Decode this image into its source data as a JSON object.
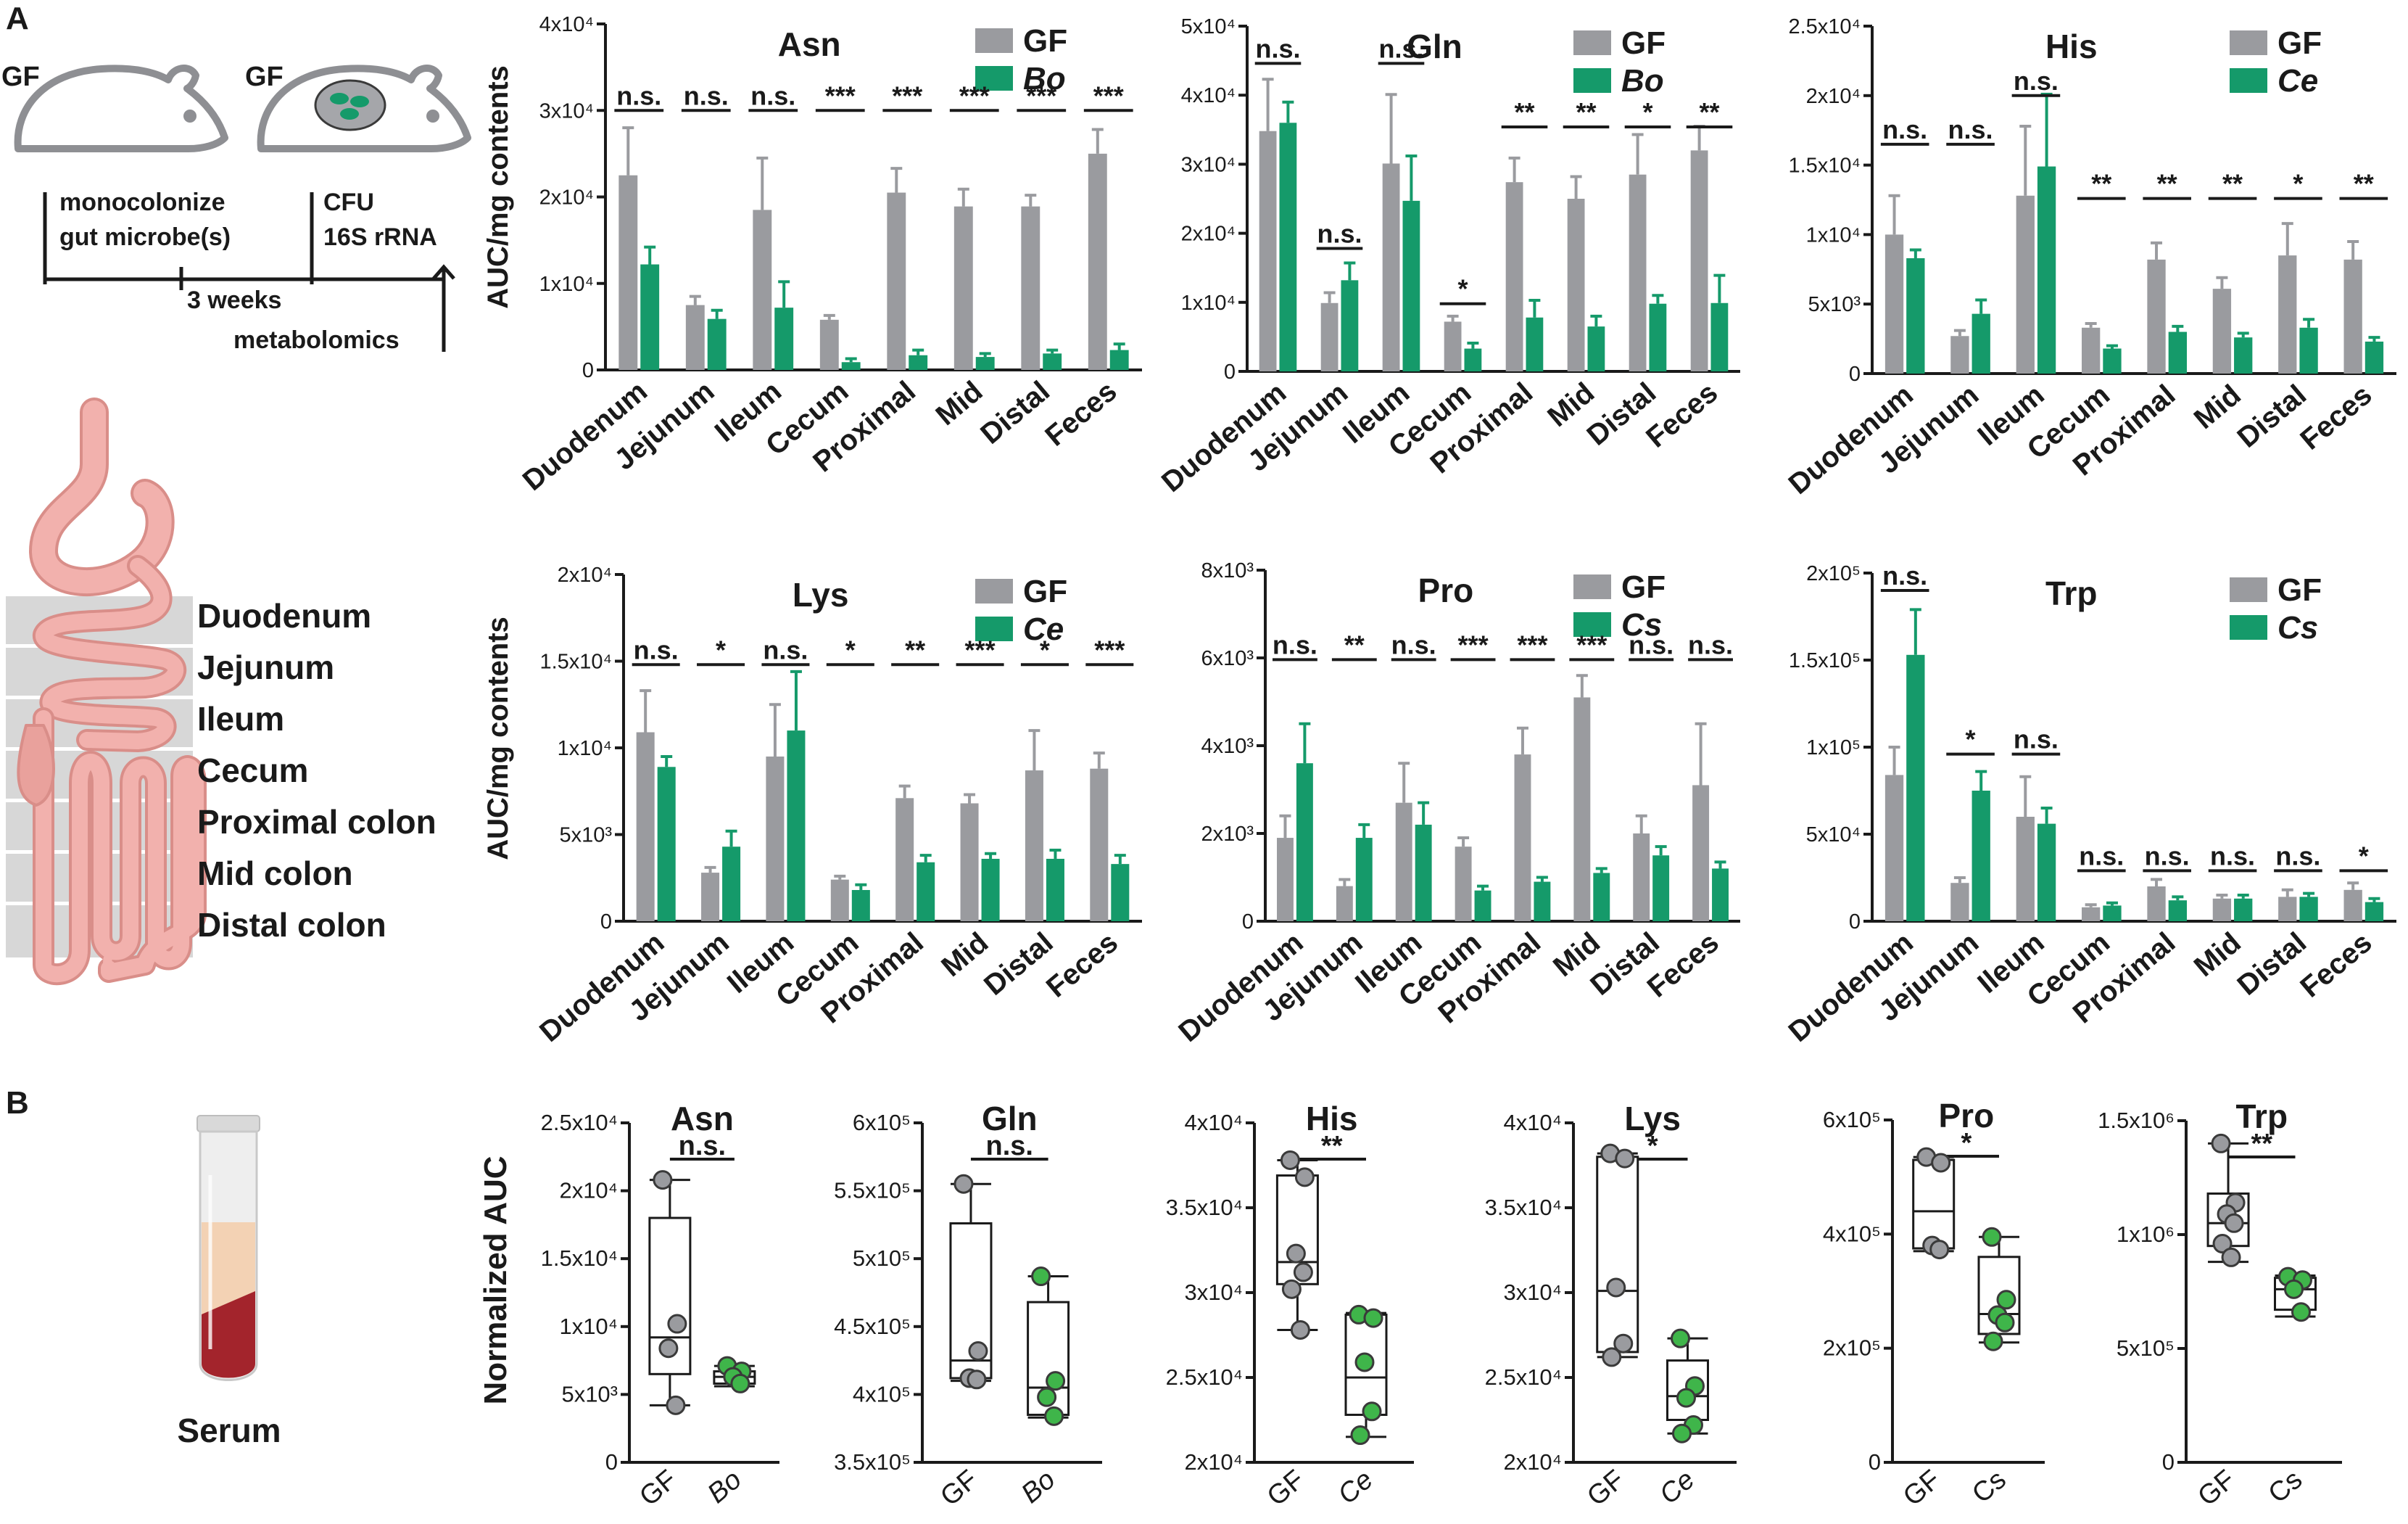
{
  "colors": {
    "gf": "#9a9b9f",
    "treated": "#159a6a",
    "axis": "#1a1a1a",
    "gut_fill": "#f2b1ad",
    "gut_stroke": "#d98e89",
    "band": "#d7d7d7",
    "serum_top": "#f3d2b4",
    "serum_bottom": "#a3242c",
    "dot_gf": "#9a9b9f",
    "dot_treated": "#3fb54a"
  },
  "panel_a": {
    "label": "A",
    "schematic": {
      "gf_left": "GF",
      "gf_right": "GF",
      "step1_line1": "monocolonize",
      "step1_line2": "gut microbe(s)",
      "step2_line1": "CFU",
      "step2_line2": "16S rRNA",
      "duration": "3 weeks",
      "endpoint": "metabolomics",
      "mouse_icon": "mouse-icon",
      "microbe_icon": "microbe-cluster-icon"
    },
    "gut": {
      "icon": "gastrointestinal-tract-icon",
      "sections": [
        "Duodenum",
        "Jejunum",
        "Ileum",
        "Cecum",
        "Proximal colon",
        "Mid colon",
        "Distal colon"
      ]
    },
    "ylabel": "AUC/mg contents"
  },
  "panel_b": {
    "label": "B",
    "serum_label": "Serum",
    "tube_icon": "blood-tube-icon",
    "ylabel": "Normalized AUC"
  },
  "chart_data": [
    {
      "type": "bar",
      "title": "Asn",
      "legend": [
        "GF",
        "Bo"
      ],
      "legend_position": "top-right",
      "grid": false,
      "categories": [
        "Duodenum",
        "Jejunum",
        "Ileum",
        "Cecum",
        "Proximal",
        "Mid",
        "Distal",
        "Feces"
      ],
      "yticks": [
        "0",
        "1x10⁴",
        "2x10⁴",
        "3x10⁴",
        "4x10⁴"
      ],
      "ylim": [
        0,
        40000
      ],
      "series": [
        {
          "name": "GF",
          "values": [
            22500,
            7500,
            18500,
            5800,
            20500,
            18900,
            18900,
            25000
          ],
          "errors": [
            5500,
            1000,
            6000,
            500,
            2800,
            2000,
            1300,
            2800
          ]
        },
        {
          "name": "Bo",
          "values": [
            12200,
            5900,
            7200,
            900,
            1700,
            1500,
            1900,
            2300
          ],
          "errors": [
            2000,
            1000,
            3000,
            400,
            600,
            400,
            400,
            700
          ]
        }
      ],
      "significance": [
        "n.s.",
        "n.s.",
        "n.s.",
        "***",
        "***",
        "***",
        "***",
        "***"
      ],
      "sig_heights": [
        30000,
        30000,
        30000,
        30000,
        30000,
        30000,
        30000,
        30000
      ]
    },
    {
      "type": "bar",
      "title": "Gln",
      "legend": [
        "GF",
        "Bo"
      ],
      "legend_position": "top-right",
      "grid": false,
      "categories": [
        "Duodenum",
        "Jejunum",
        "Ileum",
        "Cecum",
        "Proximal",
        "Mid",
        "Distal",
        "Feces"
      ],
      "yticks": [
        "0",
        "1x10⁴",
        "2x10⁴",
        "3x10⁴",
        "4x10⁴",
        "5x10⁴"
      ],
      "ylim": [
        0,
        50000
      ],
      "series": [
        {
          "name": "GF",
          "values": [
            34800,
            9900,
            30100,
            7200,
            27400,
            25000,
            28500,
            32000
          ],
          "errors": [
            7500,
            1500,
            10000,
            800,
            3500,
            3200,
            5800,
            3500
          ]
        },
        {
          "name": "Bo",
          "values": [
            36000,
            13200,
            24700,
            3300,
            7800,
            6500,
            9800,
            9900
          ],
          "errors": [
            3000,
            2500,
            6500,
            800,
            2500,
            1500,
            1200,
            4000
          ]
        }
      ],
      "significance": [
        "n.s.",
        "n.s.",
        "n.s.",
        "*",
        "**",
        "**",
        "*",
        "**"
      ],
      "sig_heights": [
        44600,
        17800,
        44600,
        9800,
        35400,
        35400,
        35400,
        35400
      ]
    },
    {
      "type": "bar",
      "title": "His",
      "legend": [
        "GF",
        "Ce"
      ],
      "legend_position": "top-right",
      "grid": false,
      "categories": [
        "Duodenum",
        "Jejunum",
        "Ileum",
        "Cecum",
        "Proximal",
        "Mid",
        "Distal",
        "Feces"
      ],
      "yticks": [
        "0",
        "5x10³",
        "1x10⁴",
        "1.5x10⁴",
        "2x10⁴",
        "2.5x10⁴"
      ],
      "ylim": [
        0,
        25000
      ],
      "series": [
        {
          "name": "GF",
          "values": [
            10000,
            2700,
            12800,
            3300,
            8200,
            6100,
            8500,
            8200
          ],
          "errors": [
            2800,
            400,
            5000,
            300,
            1200,
            800,
            2300,
            1300
          ]
        },
        {
          "name": "Ce",
          "values": [
            8300,
            4300,
            14900,
            1800,
            3000,
            2600,
            3300,
            2300
          ],
          "errors": [
            600,
            1000,
            5200,
            200,
            400,
            300,
            600,
            300
          ]
        }
      ],
      "significance": [
        "n.s.",
        "n.s.",
        "n.s.",
        "**",
        "**",
        "**",
        "*",
        "**"
      ],
      "sig_heights": [
        16500,
        16500,
        20000,
        12600,
        12600,
        12600,
        12600,
        12600
      ]
    },
    {
      "type": "bar",
      "title": "Lys",
      "legend": [
        "GF",
        "Ce"
      ],
      "legend_position": "top-right",
      "grid": false,
      "categories": [
        "Duodenum",
        "Jejunum",
        "Ileum",
        "Cecum",
        "Proximal",
        "Mid",
        "Distal",
        "Feces"
      ],
      "yticks": [
        "0",
        "5x10³",
        "1x10⁴",
        "1.5x10⁴",
        "2x10⁴"
      ],
      "ylim": [
        0,
        20000
      ],
      "series": [
        {
          "name": "GF",
          "values": [
            10900,
            2800,
            9500,
            2400,
            7100,
            6800,
            8700,
            8800
          ],
          "errors": [
            2400,
            300,
            3000,
            200,
            700,
            500,
            2300,
            900
          ]
        },
        {
          "name": "Ce",
          "values": [
            8900,
            4300,
            11000,
            1800,
            3400,
            3600,
            3600,
            3300
          ],
          "errors": [
            600,
            900,
            3400,
            300,
            400,
            300,
            500,
            500
          ]
        }
      ],
      "significance": [
        "n.s.",
        "*",
        "n.s.",
        "*",
        "**",
        "***",
        "*",
        "***"
      ],
      "sig_heights": [
        14800,
        14800,
        14800,
        14800,
        14800,
        14800,
        14800,
        14800
      ]
    },
    {
      "type": "bar",
      "title": "Pro",
      "legend": [
        "GF",
        "Cs"
      ],
      "legend_position": "top-right",
      "grid": false,
      "categories": [
        "Duodenum",
        "Jejunum",
        "Ileum",
        "Cecum",
        "Proximal",
        "Mid",
        "Distal",
        "Feces"
      ],
      "yticks": [
        "0",
        "2x10³",
        "4x10³",
        "6x10³",
        "8x10³"
      ],
      "ylim": [
        0,
        8000
      ],
      "series": [
        {
          "name": "GF",
          "values": [
            1900,
            800,
            2700,
            1700,
            3800,
            5100,
            2000,
            3100
          ],
          "errors": [
            500,
            150,
            900,
            200,
            600,
            500,
            400,
            1400
          ]
        },
        {
          "name": "Cs",
          "values": [
            3600,
            1900,
            2200,
            700,
            900,
            1100,
            1500,
            1200
          ],
          "errors": [
            900,
            300,
            500,
            100,
            100,
            100,
            200,
            150
          ]
        }
      ],
      "significance": [
        "n.s.",
        "**",
        "n.s.",
        "***",
        "***",
        "***",
        "n.s.",
        "n.s."
      ],
      "sig_heights": [
        5960,
        5960,
        5960,
        5960,
        5960,
        5960,
        5960,
        5960
      ]
    },
    {
      "type": "bar",
      "title": "Trp",
      "legend": [
        "GF",
        "Cs"
      ],
      "legend_position": "top-right",
      "grid": false,
      "categories": [
        "Duodenum",
        "Jejunum",
        "Ileum",
        "Cecum",
        "Proximal",
        "Mid",
        "Distal",
        "Feces"
      ],
      "yticks": [
        "0",
        "5x10⁴",
        "1x10⁵",
        "1.5x10⁵",
        "2x10⁵"
      ],
      "ylim": [
        0,
        200000
      ],
      "series": [
        {
          "name": "GF",
          "values": [
            84000,
            22000,
            60000,
            8000,
            20000,
            13000,
            14000,
            18000
          ],
          "errors": [
            16000,
            3000,
            23000,
            1500,
            4000,
            2000,
            4000,
            4000
          ]
        },
        {
          "name": "Cs",
          "values": [
            153000,
            75000,
            56000,
            9000,
            12000,
            13000,
            14000,
            11000
          ],
          "errors": [
            26000,
            11000,
            9000,
            1500,
            2000,
            2000,
            2000,
            2000
          ]
        }
      ],
      "significance": [
        "n.s.",
        "*",
        "n.s.",
        "n.s.",
        "n.s.",
        "n.s.",
        "n.s.",
        "*"
      ],
      "sig_heights": [
        190000,
        96000,
        96000,
        29000,
        29000,
        29000,
        29000,
        29000
      ]
    },
    {
      "type": "boxplot",
      "title": "Asn",
      "categories": [
        "GF",
        "Bo"
      ],
      "significance": "n.s.",
      "yticks": [
        "0",
        "5x10³",
        "1x10⁴",
        "1.5x10⁴",
        "2x10⁴",
        "2.5x10⁴"
      ],
      "ylim": [
        0,
        25000
      ],
      "groups": [
        {
          "name": "GF",
          "min": 4200,
          "q1": 6500,
          "median": 9200,
          "q3": 18000,
          "max": 20800,
          "points": [
            20800,
            10200,
            8400,
            4200
          ]
        },
        {
          "name": "Bo",
          "min": 5600,
          "q1": 5800,
          "median": 6300,
          "q3": 6700,
          "max": 7100,
          "points": [
            7100,
            6700,
            6300,
            5800
          ]
        }
      ]
    },
    {
      "type": "boxplot",
      "title": "Gln",
      "categories": [
        "GF",
        "Bo"
      ],
      "significance": "n.s.",
      "yticks": [
        "3.5x10⁵",
        "4x10⁵",
        "4.5x10⁵",
        "5x10⁵",
        "5.5x10⁵",
        "6x10⁵"
      ],
      "ylim": [
        350000,
        600000
      ],
      "groups": [
        {
          "name": "GF",
          "min": 410000,
          "q1": 412000,
          "median": 425000,
          "q3": 526000,
          "max": 555000,
          "points": [
            555000,
            432000,
            412000,
            411000
          ]
        },
        {
          "name": "Bo",
          "min": 383000,
          "q1": 385000,
          "median": 405000,
          "q3": 468000,
          "max": 487000,
          "points": [
            487000,
            410000,
            398000,
            384000
          ]
        }
      ]
    },
    {
      "type": "boxplot",
      "title": "His",
      "categories": [
        "GF",
        "Ce"
      ],
      "significance": "**",
      "yticks": [
        "2x10⁴",
        "2.5x10⁴",
        "3x10⁴",
        "3.5x10⁴",
        "4x10⁴"
      ],
      "ylim": [
        20000,
        40000
      ],
      "groups": [
        {
          "name": "GF",
          "min": 27800,
          "q1": 30500,
          "median": 31800,
          "q3": 36900,
          "max": 37800,
          "points": [
            37800,
            36800,
            32300,
            31200,
            30200,
            27800
          ]
        },
        {
          "name": "Ce",
          "min": 21500,
          "q1": 22800,
          "median": 25000,
          "q3": 28700,
          "max": 28800,
          "points": [
            28700,
            28500,
            25900,
            23000,
            21600
          ]
        }
      ]
    },
    {
      "type": "boxplot",
      "title": "Lys",
      "categories": [
        "GF",
        "Ce"
      ],
      "significance": "*",
      "yticks": [
        "2x10⁴",
        "2.5x10⁴",
        "3x10⁴",
        "3.5x10⁴",
        "4x10⁴"
      ],
      "ylim": [
        20000,
        40000
      ],
      "groups": [
        {
          "name": "GF",
          "min": 26200,
          "q1": 26500,
          "median": 30100,
          "q3": 38000,
          "max": 38200,
          "points": [
            38200,
            37900,
            30300,
            27000,
            26200
          ]
        },
        {
          "name": "Ce",
          "min": 21700,
          "q1": 22500,
          "median": 23900,
          "q3": 26000,
          "max": 27300,
          "points": [
            27300,
            24500,
            23800,
            22200,
            21700
          ]
        }
      ]
    },
    {
      "type": "boxplot",
      "title": "Pro",
      "categories": [
        "GF",
        "Cs"
      ],
      "significance": "*",
      "yticks": [
        "0",
        "2x10⁵",
        "4x10⁵",
        "6x10⁵"
      ],
      "ylim": [
        0,
        600000
      ],
      "groups": [
        {
          "name": "GF",
          "min": 370000,
          "q1": 375000,
          "median": 440000,
          "q3": 530000,
          "max": 535000,
          "points": [
            535000,
            525000,
            380000,
            373000
          ]
        },
        {
          "name": "Cs",
          "min": 210000,
          "q1": 225000,
          "median": 260000,
          "q3": 360000,
          "max": 395000,
          "points": [
            395000,
            285000,
            258000,
            245000,
            212000
          ]
        }
      ]
    },
    {
      "type": "boxplot",
      "title": "Trp",
      "categories": [
        "GF",
        "Cs"
      ],
      "significance": "**",
      "yticks": [
        "0",
        "5x10⁵",
        "1x10⁶",
        "1.5x10⁶"
      ],
      "ylim": [
        0,
        1500000
      ],
      "groups": [
        {
          "name": "GF",
          "min": 880000,
          "q1": 950000,
          "median": 1050000,
          "q3": 1180000,
          "max": 1400000,
          "points": [
            1400000,
            1140000,
            1090000,
            1050000,
            960000,
            900000
          ]
        },
        {
          "name": "Cs",
          "min": 640000,
          "q1": 670000,
          "median": 760000,
          "q3": 810000,
          "max": 820000,
          "points": [
            815000,
            800000,
            760000,
            660000
          ]
        }
      ]
    }
  ]
}
